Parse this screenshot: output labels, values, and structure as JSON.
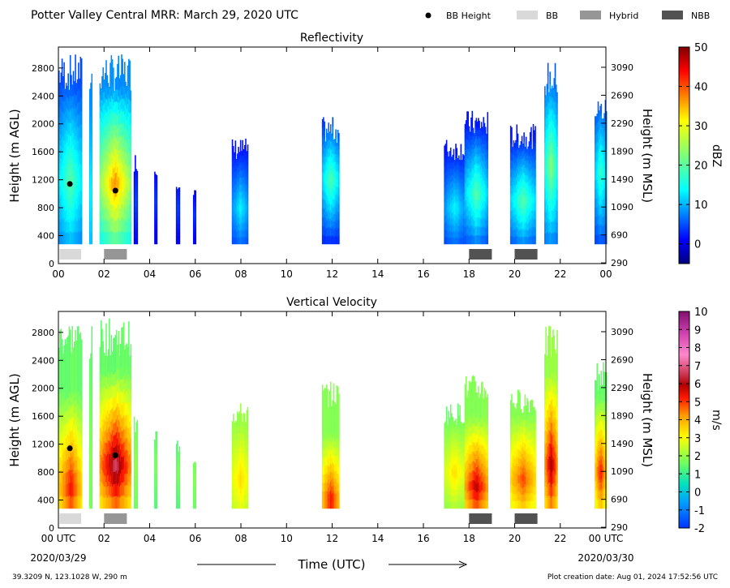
{
  "header": {
    "title": "Potter Valley Central MRR:  March 29, 2020 UTC",
    "legend": [
      {
        "label": "BB Height",
        "kind": "dot",
        "color": "#000000"
      },
      {
        "label": "BB",
        "kind": "box",
        "color": "#d9d9d9"
      },
      {
        "label": "Hybrid",
        "kind": "box",
        "color": "#969696"
      },
      {
        "label": "NBB",
        "kind": "box",
        "color": "#525252"
      }
    ]
  },
  "footer": {
    "location": "39.3209 N, 123.1028 W, 290 m",
    "created": "Plot creation date: Aug 01, 2024 17:52:56 UTC",
    "xlabel": "Time (UTC)",
    "start_date": "2020/03/29",
    "end_date": "2020/03/30"
  },
  "chart_data": [
    {
      "type": "heatmap",
      "title": "Reflectivity",
      "ylabel": "Height (m AGL)",
      "ylabel_right": "Height (m MSL)",
      "xlim": [
        0,
        24
      ],
      "ylim": [
        0,
        3100
      ],
      "x_ticks": [
        "00",
        "02",
        "04",
        "06",
        "08",
        "10",
        "12",
        "14",
        "16",
        "18",
        "20",
        "22",
        "00"
      ],
      "y_ticks": [
        0,
        400,
        800,
        1200,
        1600,
        2000,
        2400,
        2800
      ],
      "y_ticks_right": [
        "290",
        "690",
        "1090",
        "1490",
        "1890",
        "2290",
        "2690",
        "3090"
      ],
      "colorbar": {
        "label": "dBZ",
        "min": -5,
        "max": 50,
        "ticks": [
          0,
          10,
          20,
          30,
          40,
          50
        ],
        "colormap": "jet"
      },
      "bb_height_points": [
        {
          "x": 0.5,
          "y": 1140
        },
        {
          "x": 2.5,
          "y": 1045
        }
      ],
      "bb_type_bars": [
        {
          "type": "BB",
          "start": 0.05,
          "end": 1.0
        },
        {
          "type": "Hybrid",
          "start": 2.0,
          "end": 3.0
        },
        {
          "type": "NBB",
          "start": 18.0,
          "end": 19.0
        },
        {
          "type": "NBB",
          "start": 20.0,
          "end": 21.0
        }
      ],
      "echo_columns": [
        {
          "x0": 0.0,
          "x1": 1.0,
          "top": 3000,
          "low": 5,
          "peak": 20,
          "peak_h": 1200
        },
        {
          "x0": 1.35,
          "x1": 1.45,
          "top": 2900,
          "low": 8,
          "peak": 15,
          "peak_h": 1000
        },
        {
          "x0": 1.8,
          "x1": 3.15,
          "top": 3000,
          "low": 8,
          "peak": 38,
          "peak_h": 1150
        },
        {
          "x0": 3.3,
          "x1": 3.45,
          "top": 1600,
          "low": 0,
          "peak": 5,
          "peak_h": 900
        },
        {
          "x0": 4.2,
          "x1": 4.3,
          "top": 1450,
          "low": 0,
          "peak": 5,
          "peak_h": 900
        },
        {
          "x0": 5.15,
          "x1": 5.3,
          "top": 1300,
          "low": 0,
          "peak": 5,
          "peak_h": 800
        },
        {
          "x0": 5.9,
          "x1": 6.0,
          "top": 1100,
          "low": 0,
          "peak": 5,
          "peak_h": 700
        },
        {
          "x0": 7.6,
          "x1": 8.3,
          "top": 1800,
          "low": 2,
          "peak": 14,
          "peak_h": 800
        },
        {
          "x0": 11.55,
          "x1": 12.3,
          "top": 2100,
          "low": 2,
          "peak": 20,
          "peak_h": 1200
        },
        {
          "x0": 16.9,
          "x1": 17.8,
          "top": 1800,
          "low": 2,
          "peak": 14,
          "peak_h": 800
        },
        {
          "x0": 17.8,
          "x1": 18.8,
          "top": 2200,
          "low": 2,
          "peak": 20,
          "peak_h": 1000
        },
        {
          "x0": 19.8,
          "x1": 20.9,
          "top": 2000,
          "low": 2,
          "peak": 20,
          "peak_h": 900
        },
        {
          "x0": 21.3,
          "x1": 21.85,
          "top": 2900,
          "low": 5,
          "peak": 24,
          "peak_h": 1400
        },
        {
          "x0": 23.5,
          "x1": 24.0,
          "top": 2400,
          "low": 4,
          "peak": 18,
          "peak_h": 1300
        }
      ]
    },
    {
      "type": "heatmap",
      "title": "Vertical Velocity",
      "ylabel": "Height (m AGL)",
      "ylabel_right": "Height (m MSL)",
      "xlim": [
        0,
        24
      ],
      "ylim": [
        0,
        3100
      ],
      "x_ticks": [
        "00 UTC",
        "02",
        "04",
        "06",
        "08",
        "10",
        "12",
        "14",
        "16",
        "18",
        "20",
        "22",
        "00 UTC"
      ],
      "y_ticks": [
        0,
        400,
        800,
        1200,
        1600,
        2000,
        2400,
        2800
      ],
      "y_ticks_right": [
        "290",
        "690",
        "1090",
        "1490",
        "1890",
        "2290",
        "2690",
        "3090"
      ],
      "colorbar": {
        "label": "m/s",
        "min": -2,
        "max": 10,
        "ticks": [
          -2,
          -1,
          0,
          1,
          2,
          3,
          4,
          5,
          6,
          7,
          8,
          9,
          10
        ],
        "colormap": "rainbow-magenta"
      },
      "bb_height_points": [
        {
          "x": 0.5,
          "y": 1140
        },
        {
          "x": 2.5,
          "y": 1040
        }
      ],
      "bb_type_bars": [
        {
          "type": "BB",
          "start": 0.05,
          "end": 1.0
        },
        {
          "type": "Hybrid",
          "start": 2.0,
          "end": 3.0
        },
        {
          "type": "NBB",
          "start": 18.0,
          "end": 19.0
        },
        {
          "type": "NBB",
          "start": 20.0,
          "end": 21.0
        }
      ],
      "echo_columns": [
        {
          "x0": 0.0,
          "x1": 1.0,
          "top": 3000,
          "low": 1.5,
          "peak": 5.5,
          "peak_h": 600
        },
        {
          "x0": 1.35,
          "x1": 1.45,
          "top": 2900,
          "low": 1.5,
          "peak": 2.0,
          "peak_h": 1000
        },
        {
          "x0": 1.8,
          "x1": 3.15,
          "top": 3000,
          "low": 1.5,
          "peak": 6.8,
          "peak_h": 900
        },
        {
          "x0": 3.3,
          "x1": 3.45,
          "top": 1600,
          "low": 1.5,
          "peak": 2.0,
          "peak_h": 900
        },
        {
          "x0": 4.2,
          "x1": 4.3,
          "top": 1450,
          "low": 1.2,
          "peak": 1.8,
          "peak_h": 900
        },
        {
          "x0": 5.15,
          "x1": 5.3,
          "top": 1300,
          "low": 1.2,
          "peak": 1.8,
          "peak_h": 800
        },
        {
          "x0": 5.9,
          "x1": 6.0,
          "top": 1100,
          "low": 1.5,
          "peak": 2.0,
          "peak_h": 700
        },
        {
          "x0": 7.6,
          "x1": 8.3,
          "top": 1800,
          "low": 2.0,
          "peak": 3.5,
          "peak_h": 700
        },
        {
          "x0": 11.55,
          "x1": 12.3,
          "top": 2100,
          "low": 1.8,
          "peak": 5.5,
          "peak_h": 400
        },
        {
          "x0": 16.9,
          "x1": 17.8,
          "top": 1800,
          "low": 1.5,
          "peak": 3.5,
          "peak_h": 800
        },
        {
          "x0": 17.8,
          "x1": 18.8,
          "top": 2200,
          "low": 1.8,
          "peak": 6.0,
          "peak_h": 600
        },
        {
          "x0": 19.8,
          "x1": 20.9,
          "top": 2000,
          "low": 1.8,
          "peak": 5.0,
          "peak_h": 700
        },
        {
          "x0": 21.3,
          "x1": 21.85,
          "top": 2900,
          "low": 2.0,
          "peak": 6.2,
          "peak_h": 900
        },
        {
          "x0": 23.5,
          "x1": 24.0,
          "top": 2400,
          "low": 1.5,
          "peak": 5.5,
          "peak_h": 800
        }
      ]
    }
  ]
}
